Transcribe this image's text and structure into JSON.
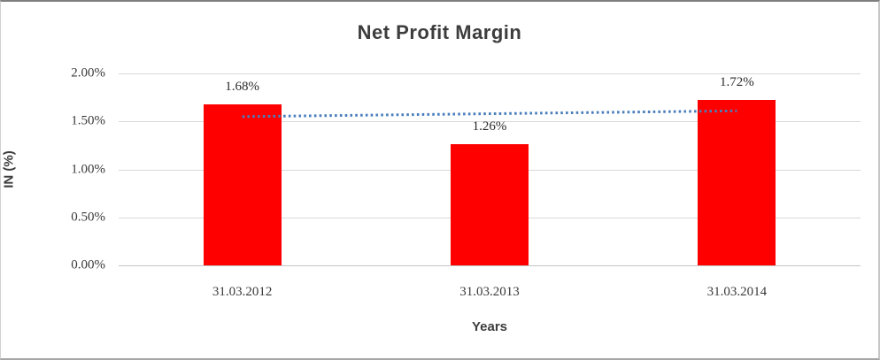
{
  "chart_data": {
    "type": "bar",
    "title": "Net Profit Margin",
    "xlabel": "Years",
    "ylabel": "IN (%)",
    "categories": [
      "31.03.2012",
      "31.03.2013",
      "31.03.2014"
    ],
    "series": [
      {
        "name": "Net Profit Margin",
        "values": [
          1.68,
          1.26,
          1.72
        ],
        "value_labels": [
          "1.68%",
          "1.26%",
          "1.72%"
        ],
        "color": "#FF0000"
      }
    ],
    "ylim": [
      0,
      2.0
    ],
    "ytick_step": 0.5,
    "ytick_labels": [
      "0.00%",
      "0.50%",
      "1.00%",
      "1.50%",
      "2.00%"
    ],
    "grid": true,
    "legend": false,
    "trendline": {
      "style": "dotted",
      "color": "#4A7EBB",
      "start_value": 1.55,
      "end_value": 1.61
    }
  },
  "colors": {
    "bar": "#FF0000",
    "trendline": "#4A7EBB",
    "gridline": "#D9D9D9",
    "axis_line": "#C3C3C3",
    "title_text": "#3D3D3D",
    "tick_text": "#3A3A3A",
    "background": "#FFFFFF"
  }
}
